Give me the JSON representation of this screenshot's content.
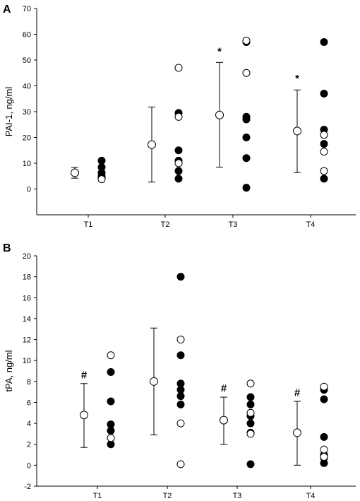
{
  "figure": {
    "panels": [
      {
        "letter": "A"
      },
      {
        "letter": "B"
      }
    ]
  },
  "chart_data": [
    {
      "type": "scatter",
      "panel": "A",
      "ylabel": "PAI-1, ng/ml",
      "xlabel": "",
      "categories": [
        "T1",
        "T2",
        "T3",
        "T4"
      ],
      "ylim": [
        -10,
        70
      ],
      "yticks": [
        0,
        10,
        20,
        30,
        40,
        50,
        60,
        70
      ],
      "grid": false,
      "summary": [
        {
          "category": "T1",
          "mean": 6.3,
          "lower": 4.2,
          "upper": 8.4
        },
        {
          "category": "T2",
          "mean": 17.2,
          "lower": 2.7,
          "upper": 31.8
        },
        {
          "category": "T3",
          "mean": 28.7,
          "lower": 8.5,
          "upper": 49.1
        },
        {
          "category": "T4",
          "mean": 22.5,
          "lower": 6.4,
          "upper": 38.4
        }
      ],
      "series": [
        {
          "fill": "filled",
          "points": {
            "T1": [
              11.0,
              8.5,
              6.3,
              5.0,
              4.5,
              4.0
            ],
            "T2": [
              29.5,
              15.0,
              11.0,
              7.0,
              4.0
            ],
            "T3": [
              57.0,
              28.0,
              27.0,
              20.0,
              12.0,
              0.5
            ],
            "T4": [
              57.0,
              37.0,
              23.0,
              21.0,
              17.5,
              4.0
            ]
          }
        },
        {
          "fill": "open",
          "points": {
            "T1": [
              3.8
            ],
            "T2": [
              47.0,
              28.0,
              10.0
            ],
            "T3": [
              57.5,
              45.0
            ],
            "T4": [
              21.0,
              14.5,
              7.0
            ]
          }
        }
      ],
      "annotations": [
        {
          "category": "T3",
          "text": "*",
          "y": 52.0
        },
        {
          "category": "T4",
          "text": "*",
          "y": 41.5
        }
      ]
    },
    {
      "type": "scatter",
      "panel": "B",
      "ylabel": "tPA, ng/ml",
      "xlabel": "",
      "categories": [
        "T1",
        "T2",
        "T3",
        "T4"
      ],
      "ylim": [
        -2,
        20
      ],
      "yticks": [
        -2,
        0,
        2,
        4,
        6,
        8,
        10,
        12,
        14,
        16,
        18,
        20
      ],
      "grid": false,
      "summary": [
        {
          "category": "T1",
          "mean": 4.8,
          "lower": 1.7,
          "upper": 7.8
        },
        {
          "category": "T2",
          "mean": 8.0,
          "lower": 2.9,
          "upper": 13.1
        },
        {
          "category": "T3",
          "mean": 4.3,
          "lower": 2.0,
          "upper": 6.5
        },
        {
          "category": "T4",
          "mean": 3.1,
          "lower": 0.0,
          "upper": 6.1
        }
      ],
      "series": [
        {
          "fill": "filled",
          "points": {
            "T1": [
              8.9,
              6.1,
              3.9,
              3.3,
              2.0
            ],
            "T2": [
              18.0,
              10.5,
              7.8,
              7.2,
              6.6,
              5.8
            ],
            "T3": [
              6.5,
              5.8,
              4.7,
              4.0,
              3.1,
              0.1
            ],
            "T4": [
              7.2,
              6.3,
              2.7,
              1.0,
              0.7,
              0.2
            ]
          }
        },
        {
          "fill": "open",
          "points": {
            "T1": [
              10.5,
              2.6
            ],
            "T2": [
              12.0,
              4.0,
              0.1
            ],
            "T3": [
              7.8,
              5.0,
              3.0
            ],
            "T4": [
              7.5,
              1.5,
              0.8
            ]
          }
        }
      ],
      "annotations": [
        {
          "category": "T1",
          "text": "#",
          "y": 8.3
        },
        {
          "category": "T3",
          "text": "#",
          "y": 7.0
        },
        {
          "category": "T4",
          "text": "#",
          "y": 6.6
        }
      ]
    }
  ]
}
